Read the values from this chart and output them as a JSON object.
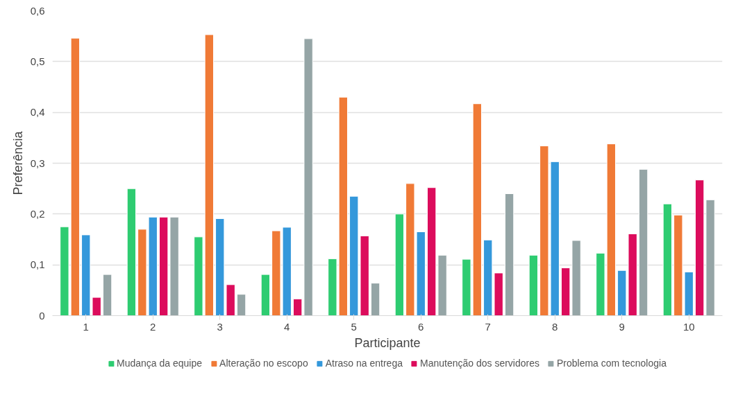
{
  "chart_data": {
    "type": "bar",
    "xlabel": "Participante",
    "ylabel": "Preferência",
    "categories": [
      "1",
      "2",
      "3",
      "4",
      "5",
      "6",
      "7",
      "8",
      "9",
      "10"
    ],
    "series": [
      {
        "name": "Mudança da equipe",
        "color": "#2ecc71",
        "values": [
          0.175,
          0.25,
          0.155,
          0.081,
          0.112,
          0.2,
          0.111,
          0.119,
          0.123,
          0.22
        ]
      },
      {
        "name": "Alteração no escopo",
        "color": "#f07a36",
        "values": [
          0.546,
          0.17,
          0.553,
          0.167,
          0.43,
          0.26,
          0.417,
          0.334,
          0.338,
          0.198
        ]
      },
      {
        "name": "Atraso na entrega",
        "color": "#3498db",
        "values": [
          0.159,
          0.194,
          0.191,
          0.174,
          0.235,
          0.165,
          0.149,
          0.303,
          0.089,
          0.086
        ]
      },
      {
        "name": "Manutenção dos servidores",
        "color": "#dc0c5c",
        "values": [
          0.036,
          0.194,
          0.061,
          0.033,
          0.157,
          0.252,
          0.084,
          0.094,
          0.161,
          0.267
        ]
      },
      {
        "name": "Problema com tecnologia",
        "color": "#95a5a6",
        "values": [
          0.081,
          0.194,
          0.042,
          0.545,
          0.064,
          0.119,
          0.24,
          0.148,
          0.288,
          0.228
        ]
      }
    ],
    "ylim": [
      0,
      0.6
    ],
    "yticks": [
      {
        "value": 0,
        "label": "0"
      },
      {
        "value": 0.1,
        "label": "0,1"
      },
      {
        "value": 0.2,
        "label": "0,2"
      },
      {
        "value": 0.3,
        "label": "0,3"
      },
      {
        "value": 0.4,
        "label": "0,4"
      },
      {
        "value": 0.5,
        "label": "0,5"
      },
      {
        "value": 0.6,
        "label": "0,6"
      }
    ],
    "grid": "y",
    "legend": "bottom"
  }
}
